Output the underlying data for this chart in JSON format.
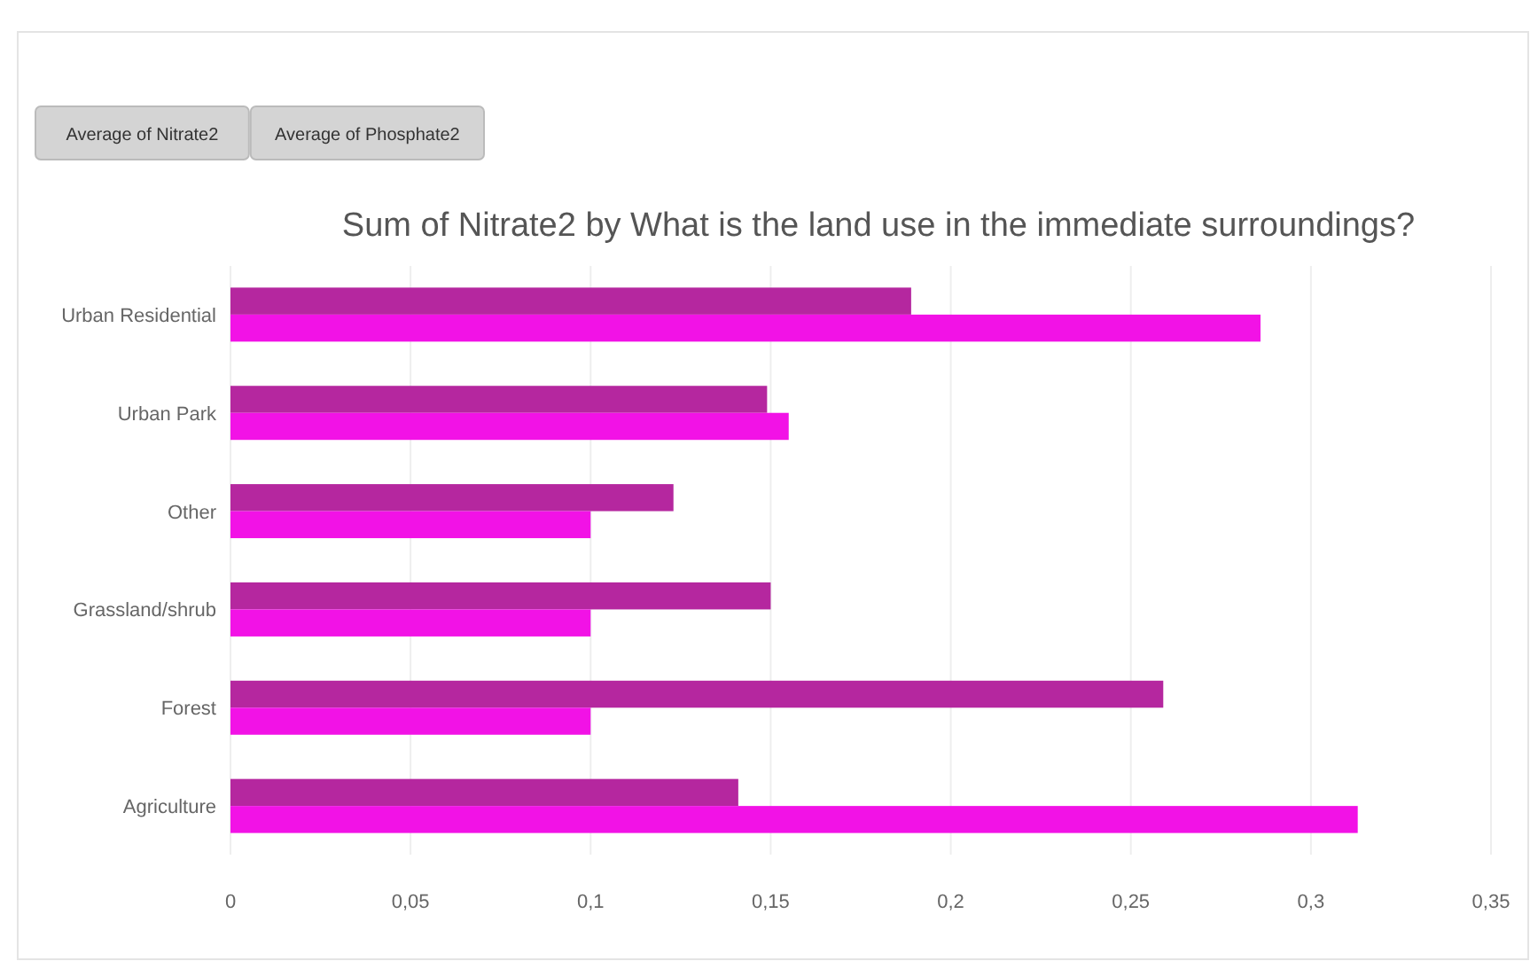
{
  "chart_data": {
    "type": "bar",
    "orientation": "horizontal",
    "title": "Sum of Nitrate2 by What is the land use in the immediate surroundings?",
    "annotations": [
      "Average of Nitrate2",
      "Average of Phosphate2"
    ],
    "categories": [
      "Urban Residential",
      "Urban Park",
      "Other",
      "Grassland/shrub",
      "Forest",
      "Agriculture"
    ],
    "series": [
      {
        "color": "#b5279f",
        "values": [
          0.189,
          0.149,
          0.123,
          0.15,
          0.259,
          0.141
        ]
      },
      {
        "color": "#f212e6",
        "values": [
          0.286,
          0.155,
          0.1,
          0.1,
          0.1,
          0.313
        ]
      }
    ],
    "xlim": [
      0,
      0.35
    ],
    "xticks": [
      0,
      {
        "value": 0.05,
        "label": "0,05"
      },
      {
        "value": 0.1,
        "label": "0,1"
      },
      {
        "value": 0.15,
        "label": "0,15"
      },
      {
        "value": 0.2,
        "label": "0,2"
      },
      {
        "value": 0.25,
        "label": "0,25"
      },
      {
        "value": 0.3,
        "label": "0,3"
      },
      {
        "value": 0.35,
        "label": "0,35"
      }
    ],
    "grid": "x"
  }
}
